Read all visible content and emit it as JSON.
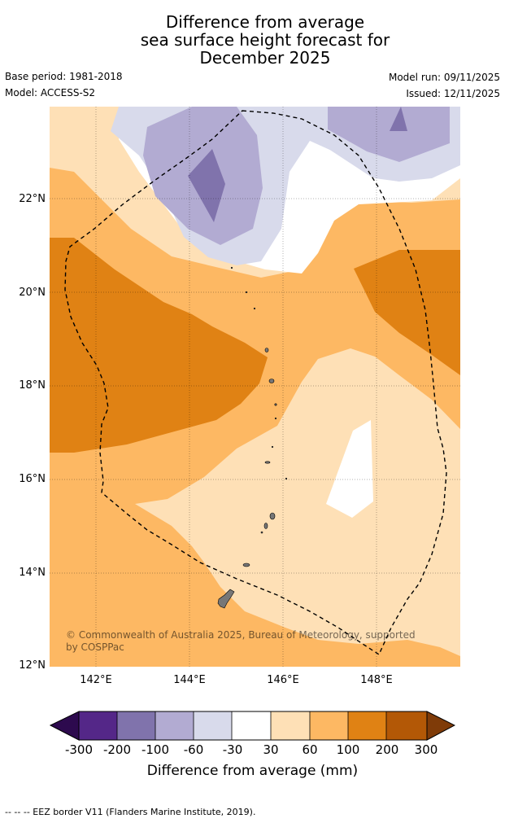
{
  "title": {
    "line1": "Difference from average",
    "line2": "sea surface height forecast for",
    "line3": "December 2025"
  },
  "meta": {
    "base_period": "Base period: 1981-2018",
    "model": "Model: ACCESS-S2",
    "model_run": "Model run: 09/11/2025",
    "issued": "Issued: 12/11/2025"
  },
  "map": {
    "lat_labels": [
      "22°N",
      "20°N",
      "18°N",
      "16°N",
      "14°N",
      "12°N"
    ],
    "lon_labels": [
      "142°E",
      "144°E",
      "146°E",
      "148°E"
    ],
    "credit_line1": "© Commonwealth of Australia 2025, Bureau of Meteorology, supported",
    "credit_line2": "by COSPPac"
  },
  "colorbar": {
    "ticks": [
      "-300",
      "-200",
      "-100",
      "-60",
      "-30",
      "30",
      "60",
      "100",
      "200",
      "300"
    ],
    "colors": [
      "#2d0a4e",
      "#542788",
      "#8073ac",
      "#b2abd2",
      "#d8daeb",
      "#ffffff",
      "#fee0b6",
      "#fdb863",
      "#e08214",
      "#b35806",
      "#7f3b08"
    ],
    "label": "Difference from average (mm)"
  },
  "footnote": "--  --  -- EEZ border V11 (Flanders Marine Institute, 2019)."
}
